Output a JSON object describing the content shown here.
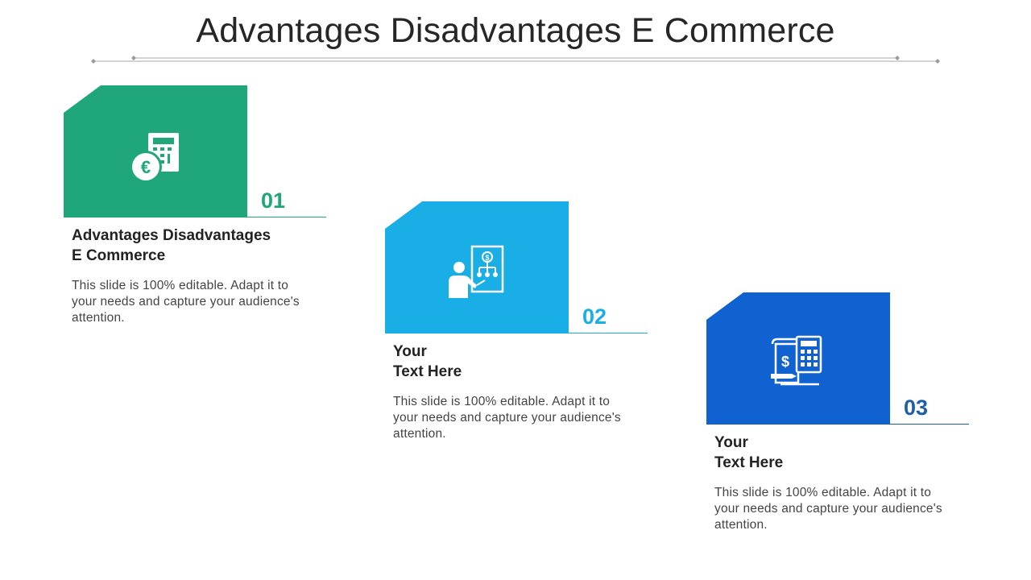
{
  "title": "Advantages Disadvantages E Commerce",
  "colors": {
    "green": "#1fa67a",
    "light_blue": "#1aaee6",
    "blue": "#0f62d0",
    "title": "#262626",
    "divider": "#9a9a9a"
  },
  "cards": [
    {
      "number": "01",
      "heading_line1": "Advantages Disadvantages",
      "heading_line2": "E Commerce",
      "description": "This slide is 100% editable. Adapt it to your needs and capture your audience's attention.",
      "icon": "calculator-euro-icon",
      "color": "#1fa67a",
      "number_color": "#1fa67a"
    },
    {
      "number": "02",
      "heading_line1": "Your",
      "heading_line2": "Text Here",
      "description": "This slide is 100% editable. Adapt it to your needs and capture your audience's attention.",
      "icon": "presentation-finance-icon",
      "color": "#1aaee6",
      "number_color": "#1aaee6"
    },
    {
      "number": "03",
      "heading_line1": "Your",
      "heading_line2": "Text Here",
      "description": "This slide is 100% editable. Adapt it to your needs and capture your audience's attention.",
      "icon": "invoice-calculator-icon",
      "color": "#0f62d0",
      "number_color": "#1b5fa8"
    }
  ]
}
